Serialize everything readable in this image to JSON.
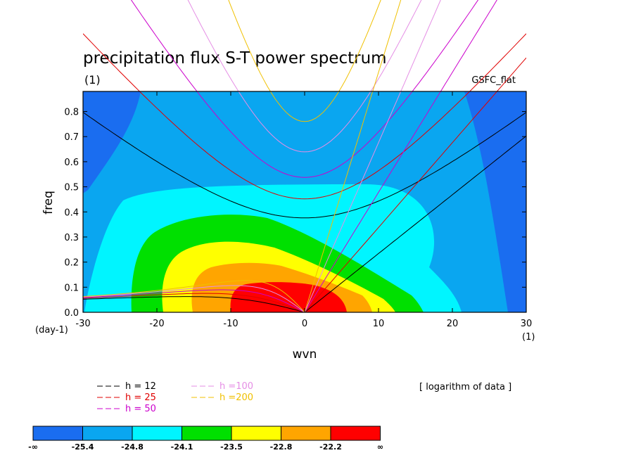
{
  "chart_data": {
    "type": "heatmap",
    "title": "precipitation flux S-T power spectrum",
    "subtitle": "(1)",
    "dataset_label": "GSFC_flat",
    "xlabel": "wvn",
    "ylabel": "freq",
    "x_unit_label": "(1)",
    "y_unit_label": "(day-1)",
    "xlim": [
      -30,
      30
    ],
    "ylim": [
      0,
      0.88
    ],
    "xticks": [
      "-30",
      "-20",
      "-10",
      "0",
      "10",
      "20",
      "30"
    ],
    "xtick_values": [
      -30,
      -20,
      -10,
      0,
      10,
      20,
      30
    ],
    "yticks": [
      "0.0",
      "0.1",
      "0.2",
      "0.3",
      "0.4",
      "0.5",
      "0.6",
      "0.7",
      "0.8"
    ],
    "ytick_values": [
      0,
      0.1,
      0.2,
      0.3,
      0.4,
      0.5,
      0.6,
      0.7,
      0.8
    ],
    "note": "[ logarithm of data ]",
    "color_levels": [
      {
        "label": "-∞",
        "color": "#1a6df0"
      },
      {
        "label": "-25.4",
        "color": "#0aa6f0"
      },
      {
        "label": "-24.8",
        "color": "#00f5ff"
      },
      {
        "label": "-24.1",
        "color": "#00e000"
      },
      {
        "label": "-23.5",
        "color": "#ffff00"
      },
      {
        "label": "-22.8",
        "color": "#ffa500"
      },
      {
        "label": "-22.2",
        "color": "#ff0000"
      },
      {
        "label": "∞",
        "color": null
      }
    ],
    "dispersion_curves": [
      {
        "name": "h = 12",
        "color": "#000000",
        "equivalent_depth": 12
      },
      {
        "name": "h = 25",
        "color": "#e00000",
        "equivalent_depth": 25
      },
      {
        "name": "h = 50",
        "color": "#cc00cc",
        "equivalent_depth": 50
      },
      {
        "name": "h =100",
        "color": "#e58ee5",
        "equivalent_depth": 100
      },
      {
        "name": "h =200",
        "color": "#f0c000",
        "equivalent_depth": 200
      }
    ]
  }
}
